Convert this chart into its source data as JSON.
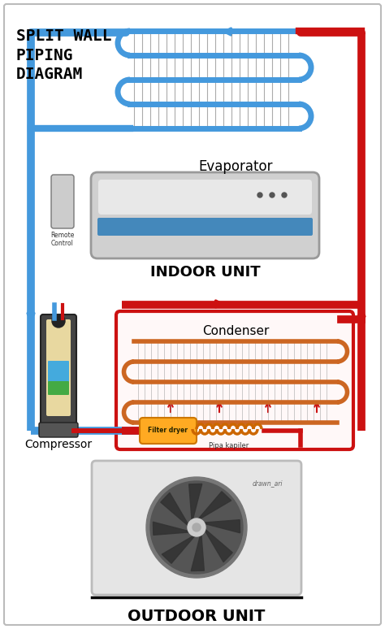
{
  "title": "SPLIT WALL\nPIPING\nDIAGRAM",
  "bg_color": "#ffffff",
  "border_color": "#bbbbbb",
  "blue": "#4499dd",
  "blue_dark": "#2266aa",
  "red": "#cc1111",
  "evaporator_label": "Evaporator",
  "indoor_label": "INDOOR UNIT",
  "condenser_label": "Condenser",
  "compressor_label": "Compressor",
  "filter_label": "Filter dryer",
  "pipa_label": "Pipa kapiler",
  "outdoor_label": "OUTDOOR UNIT",
  "remote_label": "Remote\nControl",
  "drawn_label": "drawn_ari",
  "fig_width": 4.74,
  "fig_height": 7.74,
  "dpi": 100,
  "lw_pipe": 7,
  "lw_pipe_thin": 5
}
